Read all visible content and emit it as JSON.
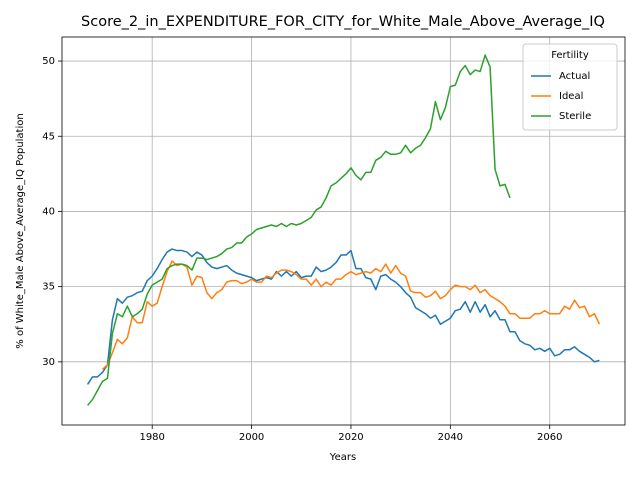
{
  "chart_data": {
    "type": "line",
    "title": "Score_2_in_EXPENDITURE_FOR_CITY_for_White_Male_Above_Average_IQ",
    "xlabel": "Years",
    "ylabel": "% of White_Male Above_Average_IQ Population",
    "legend_title": "Fertility",
    "legend": "upper right",
    "grid": true,
    "xlim": [
      1961.85,
      2075.15
    ],
    "ylim": [
      25.8,
      51.6
    ],
    "xticks": [
      1980,
      2000,
      2020,
      2040,
      2060
    ],
    "yticks": [
      30,
      35,
      40,
      45,
      50
    ],
    "x": [
      1967,
      1968,
      1969,
      1970,
      1971,
      1972,
      1973,
      1974,
      1975,
      1976,
      1977,
      1978,
      1979,
      1980,
      1981,
      1982,
      1983,
      1984,
      1985,
      1986,
      1987,
      1988,
      1989,
      1990,
      1991,
      1992,
      1993,
      1994,
      1995,
      1996,
      1997,
      1998,
      1999,
      2000,
      2001,
      2002,
      2003,
      2004,
      2005,
      2006,
      2007,
      2008,
      2009,
      2010,
      2011,
      2012,
      2013,
      2014,
      2015,
      2016,
      2017,
      2018,
      2019,
      2020,
      2021,
      2022,
      2023,
      2024,
      2025,
      2026,
      2027,
      2028,
      2029,
      2030,
      2031,
      2032,
      2033,
      2034,
      2035,
      2036,
      2037,
      2038,
      2039,
      2040,
      2041,
      2042,
      2043,
      2044,
      2045,
      2046,
      2047,
      2048,
      2049,
      2050,
      2051,
      2052,
      2053,
      2054,
      2055,
      2056,
      2057,
      2058,
      2059,
      2060,
      2061,
      2062,
      2063,
      2064,
      2065,
      2066,
      2067,
      2068,
      2069,
      2070
    ],
    "series": [
      {
        "name": "Actual",
        "color": "#1f77b4",
        "values": [
          28.5,
          29.0,
          29.0,
          29.3,
          29.8,
          32.8,
          34.2,
          33.9,
          34.3,
          34.4,
          34.6,
          34.7,
          35.4,
          35.7,
          36.2,
          36.8,
          37.3,
          37.5,
          37.4,
          37.4,
          37.3,
          37.0,
          37.3,
          37.1,
          36.6,
          36.3,
          36.2,
          36.3,
          36.4,
          36.1,
          35.9,
          35.8,
          35.7,
          35.6,
          35.4,
          35.5,
          35.6,
          35.5,
          36.0,
          35.7,
          36.0,
          35.7,
          36.0,
          35.6,
          35.7,
          35.7,
          36.3,
          36.0,
          36.1,
          36.3,
          36.6,
          37.1,
          37.1,
          37.4,
          36.2,
          36.2,
          35.6,
          35.5,
          34.8,
          35.7,
          35.8,
          35.5,
          35.3,
          35.0,
          34.6,
          34.3,
          33.6,
          33.4,
          33.2,
          32.9,
          33.1,
          32.5,
          32.7,
          32.9,
          33.4,
          33.5,
          34.0,
          33.3,
          34.0,
          33.3,
          33.8,
          33.0,
          33.4,
          32.8,
          32.8,
          32.0,
          32.0,
          31.4,
          31.2,
          31.1,
          30.8,
          30.9,
          30.7,
          30.9,
          30.4,
          30.5,
          30.8,
          30.8,
          31.0,
          30.7,
          30.5,
          30.3,
          30.0,
          30.1
        ]
      },
      {
        "name": "Ideal",
        "color": "#ff7f0e",
        "values": [
          null,
          null,
          null,
          29.5,
          29.8,
          30.6,
          31.5,
          31.2,
          31.6,
          33.0,
          32.6,
          32.6,
          34.0,
          33.7,
          33.9,
          35.0,
          36.0,
          36.7,
          36.4,
          36.5,
          36.3,
          35.1,
          35.7,
          35.6,
          34.6,
          34.2,
          34.6,
          34.8,
          35.3,
          35.4,
          35.4,
          35.2,
          35.3,
          35.5,
          35.3,
          35.3,
          35.7,
          35.6,
          35.9,
          36.1,
          36.1,
          36.0,
          35.8,
          35.5,
          35.5,
          35.1,
          35.5,
          35.0,
          35.3,
          35.1,
          35.5,
          35.5,
          35.8,
          36.0,
          35.8,
          35.9,
          36.0,
          35.9,
          36.2,
          36.0,
          36.5,
          35.9,
          36.4,
          35.9,
          35.7,
          34.7,
          34.6,
          34.6,
          34.3,
          34.4,
          34.7,
          34.2,
          34.4,
          34.8,
          35.1,
          35.0,
          35.0,
          34.8,
          35.1,
          34.6,
          34.8,
          34.4,
          34.2,
          34.0,
          33.7,
          33.2,
          33.2,
          32.9,
          32.9,
          32.9,
          33.2,
          33.2,
          33.4,
          33.2,
          33.2,
          33.2,
          33.7,
          33.5,
          34.1,
          33.6,
          33.7,
          33.0,
          33.2,
          32.5
        ]
      },
      {
        "name": "Sterile",
        "color": "#2ca02c",
        "values": [
          27.1,
          27.5,
          28.1,
          28.7,
          28.9,
          31.9,
          33.2,
          33.0,
          33.7,
          33.0,
          33.2,
          33.5,
          34.5,
          35.1,
          35.3,
          35.5,
          36.2,
          36.4,
          36.5,
          36.5,
          36.4,
          36.1,
          36.9,
          36.9,
          36.8,
          36.9,
          37.0,
          37.2,
          37.5,
          37.6,
          37.9,
          37.9,
          38.3,
          38.5,
          38.8,
          38.9,
          39.0,
          39.1,
          39.0,
          39.2,
          39.0,
          39.2,
          39.1,
          39.2,
          39.4,
          39.6,
          40.1,
          40.3,
          40.9,
          41.7,
          41.9,
          42.2,
          42.5,
          42.9,
          42.4,
          42.1,
          42.6,
          42.6,
          43.4,
          43.6,
          44.0,
          43.8,
          43.8,
          43.9,
          44.4,
          43.9,
          44.2,
          44.4,
          44.9,
          45.5,
          47.3,
          46.1,
          46.9,
          48.3,
          48.4,
          49.3,
          49.7,
          49.1,
          49.4,
          49.3,
          50.4,
          49.6,
          42.8,
          41.7,
          41.8,
          40.9,
          null,
          null,
          null,
          null,
          null,
          null,
          null,
          null,
          null,
          null,
          null,
          null,
          null,
          null,
          null,
          null,
          null,
          null
        ]
      }
    ]
  }
}
